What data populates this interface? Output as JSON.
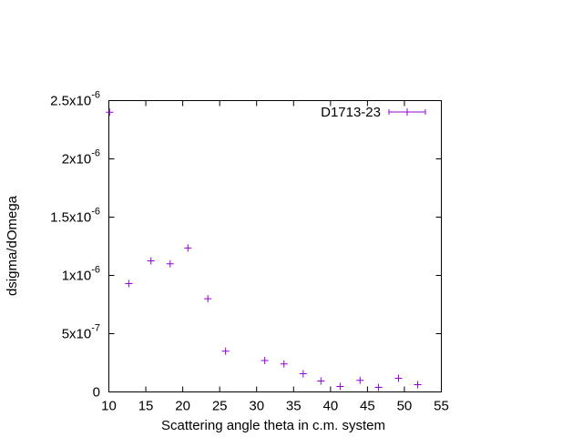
{
  "chart_data": {
    "type": "scatter",
    "xlabel": "Scattering angle theta in c.m. system",
    "ylabel": "dsigma/dOmega",
    "series": [
      {
        "name": "D1713-23",
        "color": "#9400d3",
        "x": [
          10.1,
          12.7,
          15.7,
          18.3,
          20.7,
          23.4,
          25.8,
          31.1,
          33.7,
          36.3,
          38.7,
          41.3,
          44.0,
          46.5,
          49.2,
          51.8
        ],
        "values": [
          2.4e-06,
          9.3e-07,
          1.125e-06,
          1.1e-06,
          1.235e-06,
          8e-07,
          3.5e-07,
          2.7e-07,
          2.4e-07,
          1.56e-07,
          9.4e-08,
          4.7e-08,
          1e-07,
          3.9e-08,
          1.17e-07,
          6.25e-08
        ]
      }
    ],
    "xlim": [
      10,
      55
    ],
    "xticks": [
      10,
      15,
      20,
      25,
      30,
      35,
      40,
      45,
      50,
      55
    ],
    "ylim": [
      0,
      2.5e-06
    ],
    "yticks": [
      0,
      {
        "value": 5e-07,
        "label": "5x10",
        "exponent": "-7"
      },
      {
        "value": 1e-06,
        "label": "1x10",
        "exponent": "-6"
      },
      {
        "value": 1.5e-06,
        "label": "1.5x10",
        "exponent": "-6"
      },
      {
        "value": 2e-06,
        "label": "2x10",
        "exponent": "-6"
      },
      {
        "value": 2.5e-06,
        "label": "2.5x10",
        "exponent": "-6"
      }
    ],
    "legend": "top-right"
  }
}
